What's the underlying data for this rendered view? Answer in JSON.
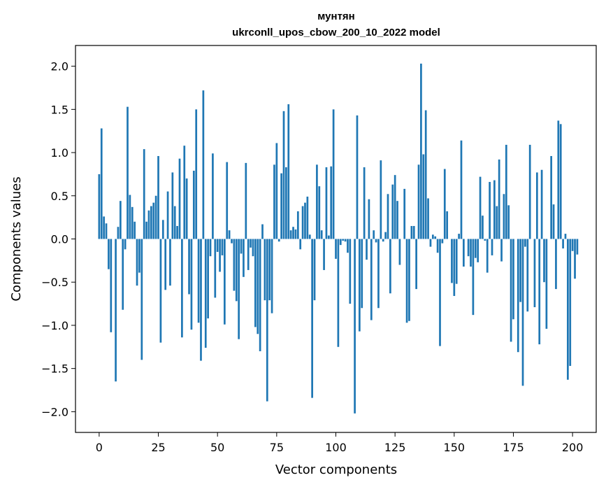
{
  "chart_data": {
    "type": "bar",
    "title": "мунтян",
    "subtitle": "ukrconll_upos_cbow_200_10_2022 model",
    "xlabel": "Vector components",
    "ylabel": "Components values",
    "xlim": [
      -10,
      210
    ],
    "ylim": [
      -2.24,
      2.24
    ],
    "xticks": [
      0,
      25,
      50,
      75,
      100,
      125,
      150,
      175,
      200
    ],
    "yticks": [
      -2.0,
      -1.5,
      -1.0,
      -0.5,
      0.0,
      0.5,
      1.0,
      1.5,
      2.0
    ],
    "ytick_labels": [
      "−2.0",
      "−1.5",
      "−1.0",
      "−0.5",
      "0.0",
      "0.5",
      "1.0",
      "1.5",
      "2.0"
    ],
    "bar_color": "#1f77b4",
    "grid": false,
    "legend": "none",
    "values": [
      0.75,
      1.28,
      0.26,
      0.18,
      -0.35,
      -1.08,
      0.0,
      -1.65,
      0.14,
      0.44,
      -0.82,
      -0.12,
      1.53,
      0.51,
      0.37,
      0.2,
      -0.54,
      -0.39,
      -1.4,
      1.04,
      0.2,
      0.33,
      0.38,
      0.42,
      0.5,
      0.96,
      -1.2,
      0.22,
      -0.59,
      0.55,
      -0.54,
      0.77,
      0.38,
      0.15,
      0.93,
      -1.14,
      1.08,
      0.7,
      -0.64,
      -1.05,
      0.79,
      1.5,
      -0.97,
      -1.41,
      1.72,
      -1.26,
      -0.92,
      -0.2,
      0.99,
      -0.68,
      -0.15,
      -0.38,
      -0.19,
      -0.99,
      0.89,
      0.1,
      -0.05,
      -0.6,
      -0.72,
      -1.16,
      -0.17,
      -0.44,
      0.88,
      -0.36,
      -0.1,
      -0.2,
      -1.02,
      -1.1,
      -1.3,
      0.17,
      -0.71,
      -1.88,
      -0.71,
      -0.86,
      0.86,
      1.11,
      -0.03,
      0.76,
      1.48,
      0.83,
      1.56,
      0.1,
      0.14,
      0.11,
      0.32,
      -0.12,
      0.38,
      0.42,
      0.49,
      0.05,
      -1.84,
      -0.71,
      0.86,
      0.61,
      0.1,
      -0.36,
      0.83,
      0.04,
      0.84,
      1.5,
      -0.23,
      -1.25,
      -0.07,
      -0.02,
      -0.03,
      -0.16,
      -0.75,
      0.0,
      -2.02,
      1.43,
      -1.07,
      -0.8,
      0.83,
      -0.24,
      0.46,
      -0.94,
      0.1,
      -0.04,
      -0.8,
      0.91,
      -0.03,
      0.08,
      0.52,
      -0.63,
      0.63,
      0.74,
      0.44,
      -0.3,
      0.0,
      0.58,
      -0.97,
      -0.95,
      0.15,
      0.15,
      -0.58,
      0.86,
      2.03,
      0.98,
      1.49,
      0.47,
      -0.09,
      0.05,
      0.03,
      -0.16,
      -1.24,
      -0.05,
      0.81,
      0.32,
      0.0,
      -0.51,
      -0.66,
      -0.52,
      0.06,
      1.14,
      -0.32,
      0.0,
      -0.2,
      -0.32,
      -0.88,
      -0.22,
      -0.27,
      0.72,
      0.27,
      -0.02,
      -0.39,
      0.66,
      -0.19,
      0.68,
      0.38,
      0.92,
      -0.26,
      0.52,
      1.09,
      0.39,
      -1.19,
      -0.93,
      0.0,
      -1.31,
      -0.73,
      -1.7,
      -0.09,
      -0.84,
      1.09,
      0.0,
      -0.79,
      0.77,
      -1.22,
      0.8,
      -0.5,
      -1.04,
      0.0,
      0.96,
      0.4,
      -0.58,
      1.37,
      1.33,
      -0.11,
      0.06,
      -1.63,
      -1.47,
      -0.14,
      -0.46,
      -0.18
    ]
  }
}
